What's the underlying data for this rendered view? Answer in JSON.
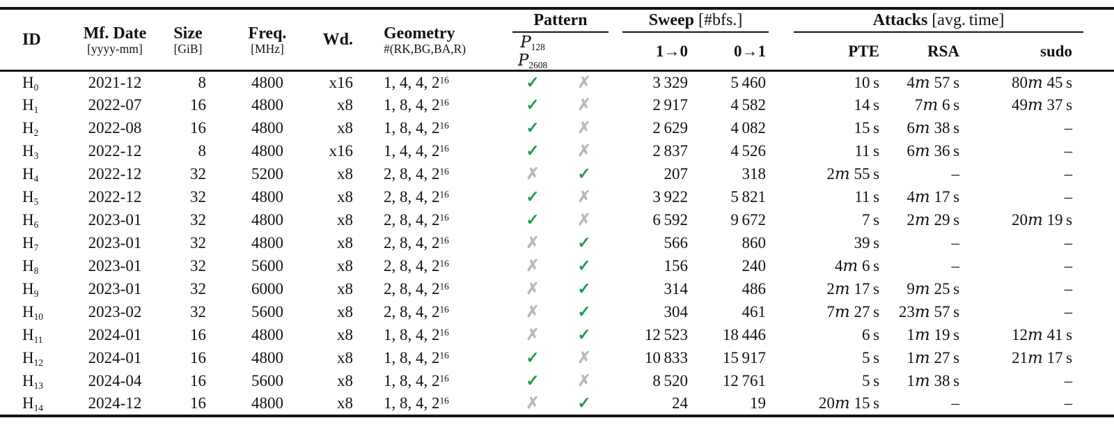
{
  "table": {
    "columns": {
      "id": {
        "label": "ID"
      },
      "date": {
        "label": "Mf. Date",
        "unit": "[yyyy-mm]"
      },
      "size": {
        "label": "Size",
        "unit": "[GiB]"
      },
      "freq": {
        "label": "Freq.",
        "unit": "[MHz]"
      },
      "wd": {
        "label": "Wd."
      },
      "geom": {
        "label": "Geometry",
        "unit": "#(RK,BG,BA,R)"
      },
      "pattern": {
        "label": "Pattern",
        "sub": [
          {
            "base": "P",
            "sub": "128"
          },
          {
            "base": "P",
            "sub": "2608"
          }
        ]
      },
      "sweep": {
        "label": "Sweep",
        "unit": "[#bfs.]",
        "sub": [
          "1→0",
          "0→1"
        ]
      },
      "attacks": {
        "label": "Attacks",
        "unit": "[avg. time]",
        "sub": [
          "PTE",
          "RSA",
          "sudo"
        ]
      }
    },
    "rows": [
      {
        "id": {
          "base": "H",
          "sub": "0"
        },
        "date": "2021-12",
        "size": "8",
        "freq": "4800",
        "wd": "x16",
        "geom": {
          "base": "1, 4, 4, 2",
          "sup": "16"
        },
        "p128": true,
        "p2608": false,
        "sweep_1to0": 3329,
        "sweep_0to1": 5460,
        "pte": {
          "s": 10
        },
        "rsa": {
          "m": 4,
          "s": 57
        },
        "sudo": {
          "m": 80,
          "s": 45
        }
      },
      {
        "id": {
          "base": "H",
          "sub": "1"
        },
        "date": "2022-07",
        "size": "16",
        "freq": "4800",
        "wd": "x8",
        "geom": {
          "base": "1, 8, 4, 2",
          "sup": "16"
        },
        "p128": true,
        "p2608": false,
        "sweep_1to0": 2917,
        "sweep_0to1": 4582,
        "pte": {
          "s": 14
        },
        "rsa": {
          "m": 7,
          "s": 6
        },
        "sudo": {
          "m": 49,
          "s": 37
        }
      },
      {
        "id": {
          "base": "H",
          "sub": "2"
        },
        "date": "2022-08",
        "size": "16",
        "freq": "4800",
        "wd": "x8",
        "geom": {
          "base": "1, 8, 4, 2",
          "sup": "16"
        },
        "p128": true,
        "p2608": false,
        "sweep_1to0": 2629,
        "sweep_0to1": 4082,
        "pte": {
          "s": 15
        },
        "rsa": {
          "m": 6,
          "s": 38
        },
        "sudo": null
      },
      {
        "id": {
          "base": "H",
          "sub": "3"
        },
        "date": "2022-12",
        "size": "8",
        "freq": "4800",
        "wd": "x16",
        "geom": {
          "base": "1, 4, 4, 2",
          "sup": "16"
        },
        "p128": true,
        "p2608": false,
        "sweep_1to0": 2837,
        "sweep_0to1": 4526,
        "pte": {
          "s": 11
        },
        "rsa": {
          "m": 6,
          "s": 36
        },
        "sudo": null
      },
      {
        "id": {
          "base": "H",
          "sub": "4"
        },
        "date": "2022-12",
        "size": "32",
        "freq": "5200",
        "wd": "x8",
        "geom": {
          "base": "2, 8, 4, 2",
          "sup": "16"
        },
        "p128": false,
        "p2608": true,
        "sweep_1to0": 207,
        "sweep_0to1": 318,
        "pte": {
          "m": 2,
          "s": 55
        },
        "rsa": null,
        "sudo": null
      },
      {
        "id": {
          "base": "H",
          "sub": "5"
        },
        "date": "2022-12",
        "size": "32",
        "freq": "4800",
        "wd": "x8",
        "geom": {
          "base": "2, 8, 4, 2",
          "sup": "16"
        },
        "p128": true,
        "p2608": false,
        "sweep_1to0": 3922,
        "sweep_0to1": 5821,
        "pte": {
          "s": 11
        },
        "rsa": {
          "m": 4,
          "s": 17
        },
        "sudo": null
      },
      {
        "id": {
          "base": "H",
          "sub": "6"
        },
        "date": "2023-01",
        "size": "32",
        "freq": "4800",
        "wd": "x8",
        "geom": {
          "base": "2, 8, 4, 2",
          "sup": "16"
        },
        "p128": true,
        "p2608": false,
        "sweep_1to0": 6592,
        "sweep_0to1": 9672,
        "pte": {
          "s": 7
        },
        "rsa": {
          "m": 2,
          "s": 29
        },
        "sudo": {
          "m": 20,
          "s": 19
        }
      },
      {
        "id": {
          "base": "H",
          "sub": "7"
        },
        "date": "2023-01",
        "size": "32",
        "freq": "4800",
        "wd": "x8",
        "geom": {
          "base": "2, 8, 4, 2",
          "sup": "16"
        },
        "p128": false,
        "p2608": true,
        "sweep_1to0": 566,
        "sweep_0to1": 860,
        "pte": {
          "s": 39
        },
        "rsa": null,
        "sudo": null
      },
      {
        "id": {
          "base": "H",
          "sub": "8"
        },
        "date": "2023-01",
        "size": "32",
        "freq": "5600",
        "wd": "x8",
        "geom": {
          "base": "2, 8, 4, 2",
          "sup": "16"
        },
        "p128": false,
        "p2608": true,
        "sweep_1to0": 156,
        "sweep_0to1": 240,
        "pte": {
          "m": 4,
          "s": 6
        },
        "rsa": null,
        "sudo": null
      },
      {
        "id": {
          "base": "H",
          "sub": "9"
        },
        "date": "2023-01",
        "size": "32",
        "freq": "6000",
        "wd": "x8",
        "geom": {
          "base": "2, 8, 4, 2",
          "sup": "16"
        },
        "p128": false,
        "p2608": true,
        "sweep_1to0": 314,
        "sweep_0to1": 486,
        "pte": {
          "m": 2,
          "s": 17
        },
        "rsa": {
          "m": 9,
          "s": 25
        },
        "sudo": null
      },
      {
        "id": {
          "base": "H",
          "sub": "10"
        },
        "date": "2023-02",
        "size": "32",
        "freq": "5600",
        "wd": "x8",
        "geom": {
          "base": "2, 8, 4, 2",
          "sup": "16"
        },
        "p128": false,
        "p2608": true,
        "sweep_1to0": 304,
        "sweep_0to1": 461,
        "pte": {
          "m": 7,
          "s": 27
        },
        "rsa": {
          "m": 23,
          "s": 57
        },
        "sudo": null
      },
      {
        "id": {
          "base": "H",
          "sub": "11"
        },
        "date": "2024-01",
        "size": "16",
        "freq": "4800",
        "wd": "x8",
        "geom": {
          "base": "1, 8, 4, 2",
          "sup": "16"
        },
        "p128": false,
        "p2608": true,
        "sweep_1to0": 12523,
        "sweep_0to1": 18446,
        "pte": {
          "s": 6
        },
        "rsa": {
          "m": 1,
          "s": 19
        },
        "sudo": {
          "m": 12,
          "s": 41
        }
      },
      {
        "id": {
          "base": "H",
          "sub": "12"
        },
        "date": "2024-01",
        "size": "16",
        "freq": "4800",
        "wd": "x8",
        "geom": {
          "base": "1, 8, 4, 2",
          "sup": "16"
        },
        "p128": true,
        "p2608": false,
        "sweep_1to0": 10833,
        "sweep_0to1": 15917,
        "pte": {
          "s": 5
        },
        "rsa": {
          "m": 1,
          "s": 27
        },
        "sudo": {
          "m": 21,
          "s": 17
        }
      },
      {
        "id": {
          "base": "H",
          "sub": "13"
        },
        "date": "2024-04",
        "size": "16",
        "freq": "5600",
        "wd": "x8",
        "geom": {
          "base": "1, 8, 4, 2",
          "sup": "16"
        },
        "p128": true,
        "p2608": false,
        "sweep_1to0": 8520,
        "sweep_0to1": 12761,
        "pte": {
          "s": 5
        },
        "rsa": {
          "m": 1,
          "s": 38
        },
        "sudo": null
      },
      {
        "id": {
          "base": "H",
          "sub": "14"
        },
        "date": "2024-12",
        "size": "16",
        "freq": "4800",
        "wd": "x8",
        "geom": {
          "base": "1, 8, 4, 2",
          "sup": "16"
        },
        "p128": false,
        "p2608": true,
        "sweep_1to0": 24,
        "sweep_0to1": 19,
        "pte": {
          "m": 20,
          "s": 15
        },
        "rsa": null,
        "sudo": null
      }
    ]
  },
  "icons": {
    "check": "✓",
    "cross": "✗"
  },
  "colors": {
    "check": "#219a52",
    "cross": "#b9b9b9"
  },
  "misc": {
    "dash": "–",
    "min_unit": "m",
    "sec_unit": "s",
    "thousands_sep": " "
  }
}
